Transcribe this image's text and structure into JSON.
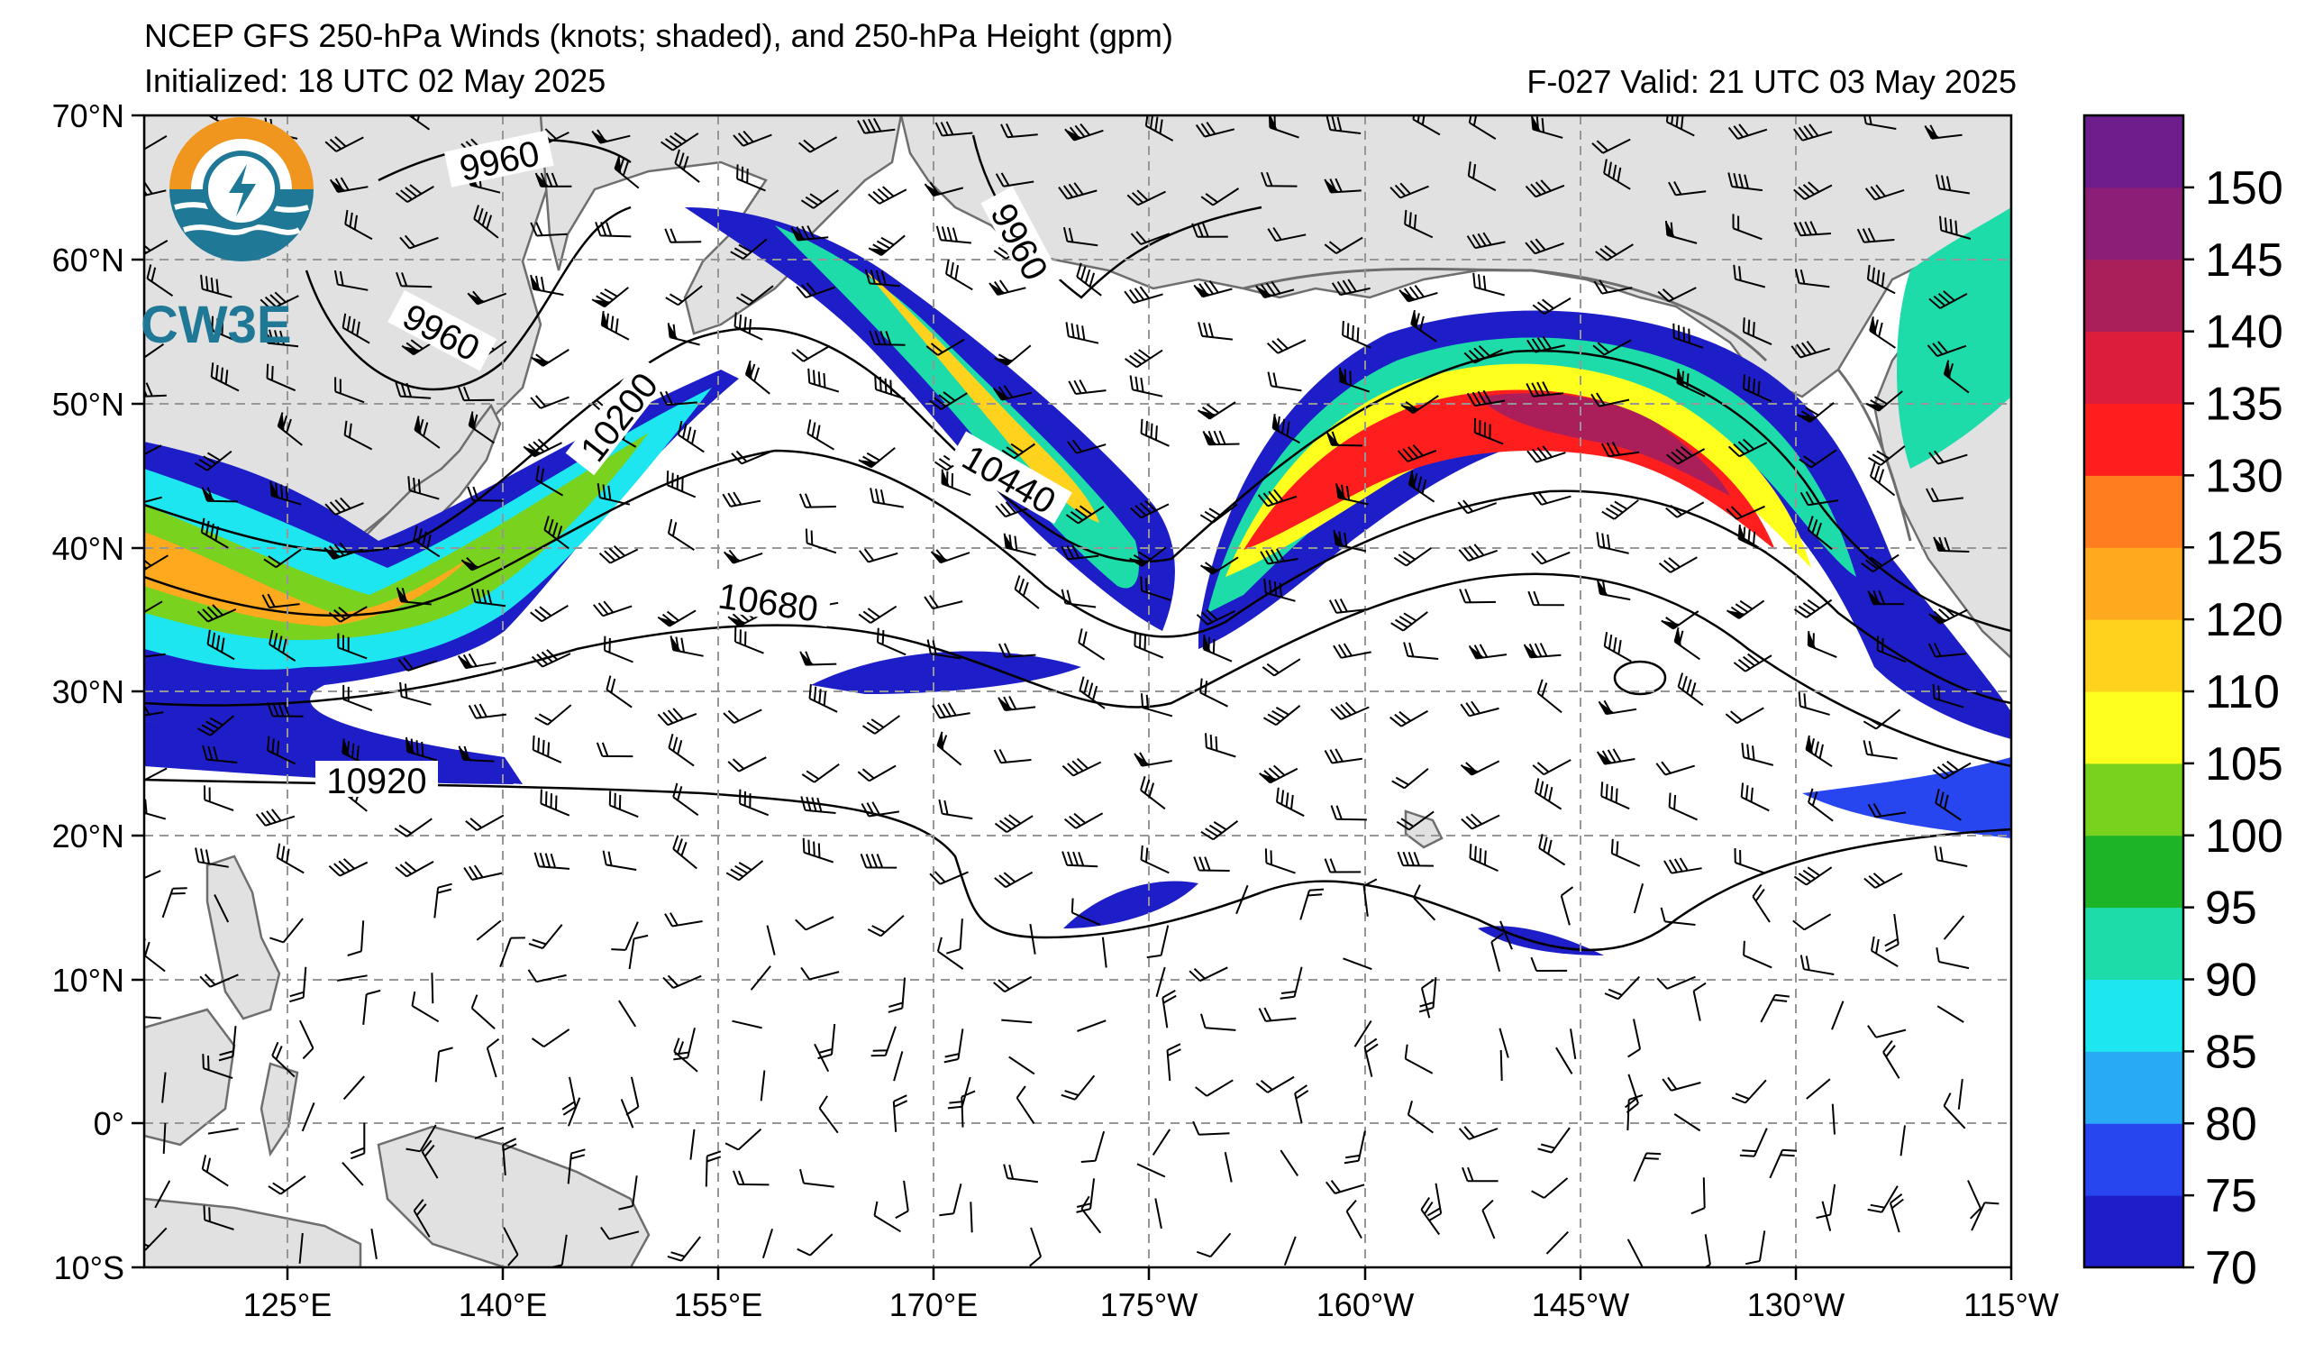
{
  "header": {
    "title": "NCEP GFS 250-hPa Winds (knots; shaded), and 250-hPa Height (gpm)",
    "initialized": "Initialized: 18 UTC 02 May 2025",
    "valid": "F-027  Valid: 21 UTC 03 May 2025"
  },
  "logo": {
    "text": "CW3E",
    "icon": "cw3e-sun-wave-logo-icon"
  },
  "axes": {
    "lat_labels": [
      "70°N",
      "60°N",
      "50°N",
      "40°N",
      "30°N",
      "20°N",
      "10°N",
      "0°",
      "10°S"
    ],
    "lon_labels": [
      "125°E",
      "140°E",
      "155°E",
      "170°E",
      "175°W",
      "160°W",
      "145°W",
      "130°W",
      "115°W"
    ]
  },
  "contour_labels": [
    "9960",
    "9960",
    "9960",
    "10200",
    "10440",
    "10680",
    "10920"
  ],
  "colorbar": {
    "labels": [
      "70",
      "75",
      "80",
      "85",
      "90",
      "95",
      "100",
      "105",
      "110",
      "120",
      "125",
      "130",
      "135",
      "140",
      "145",
      "150"
    ],
    "colors": [
      "#1e1ec8",
      "#2846f0",
      "#28aaf5",
      "#1ee6f0",
      "#1edcaa",
      "#1eb428",
      "#78d21e",
      "#ffff1e",
      "#ffd21e",
      "#ffaa1e",
      "#ff7d1e",
      "#ff1e1e",
      "#dc1e3c",
      "#aa1e5a",
      "#8c1e78",
      "#6e1e8c"
    ]
  },
  "colors": {
    "land": "#e1e1e1",
    "coast": "#6e6e6e",
    "grid": "#969696"
  }
}
